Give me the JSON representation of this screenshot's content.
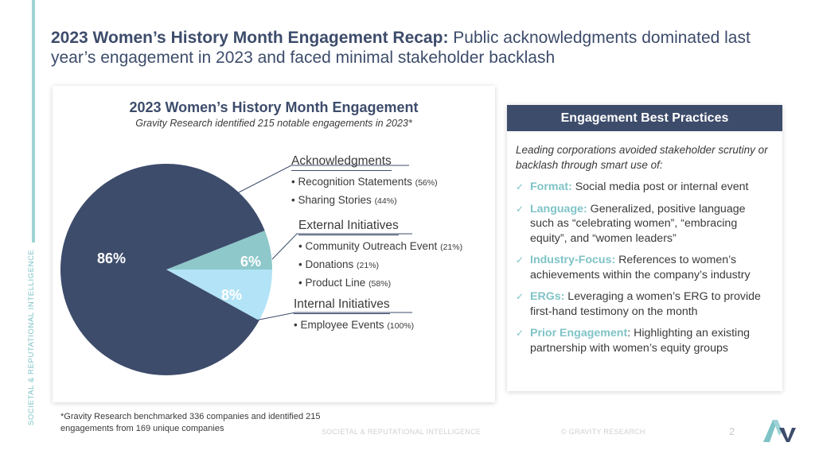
{
  "headline": {
    "bold": "2023 Women’s History Month Engagement Recap:",
    "rest": " Public acknowledgments dominated last year’s engagement in 2023 and faced minimal stakeholder backlash"
  },
  "side_label": "SOCIETAL & REPUTATIONAL INTELLIGENCE",
  "chart_data": {
    "type": "pie",
    "title": "2023 Women’s History Month Engagement",
    "subtitle": "Gravity Research identified 215 notable engagements in 2023*",
    "slices": [
      {
        "name": "Acknowledgments",
        "value": 86,
        "label": "86%",
        "color": "#3d4c6b"
      },
      {
        "name": "External Initiatives",
        "value": 6,
        "label": "6%",
        "color": "#8ec8cb"
      },
      {
        "name": "Internal Initiatives",
        "value": 8,
        "label": "8%",
        "color": "#b3e3f6"
      }
    ],
    "legend": [
      {
        "heading": "Acknowledgments",
        "items": [
          {
            "text": "Recognition Statements",
            "pct": "(56%)"
          },
          {
            "text": "Sharing Stories",
            "pct": "(44%)"
          }
        ]
      },
      {
        "heading": "External Initiatives",
        "items": [
          {
            "text": "Community Outreach Event",
            "pct": "(21%)"
          },
          {
            "text": "Donations",
            "pct": "(21%)"
          },
          {
            "text": "Product Line",
            "pct": "(58%)"
          }
        ]
      },
      {
        "heading": "Internal Initiatives",
        "items": [
          {
            "text": "Employee Events",
            "pct": "(100%)"
          }
        ]
      }
    ]
  },
  "best_practices": {
    "header": "Engagement Best Practices",
    "intro": "Leading corporations avoided stakeholder scrutiny or backlash through smart use of:",
    "check": "✓",
    "items": [
      {
        "key": "Format:",
        "text": " Social media post or internal event"
      },
      {
        "key": "Language:",
        "text": " Generalized, positive language such as “celebrating women”, “embracing equity”, and “women leaders”"
      },
      {
        "key": "Industry-Focus:",
        "text": " References to women’s achievements within the company’s industry"
      },
      {
        "key": "ERGs:",
        "text": " Leveraging a women’s ERG to provide first-hand testimony on the month"
      },
      {
        "key": "Prior Engagement",
        "text": ": Highlighting an existing partnership with women’s equity groups"
      }
    ]
  },
  "footnote": {
    "line1": "*Gravity Research benchmarked 336 companies and identified 215",
    "line2": "engagements from 169 unique companies"
  },
  "footer": {
    "center": "SOCIETAL & REPUTATIONAL INTELLIGENCE",
    "right": "© GRAVITY RESEARCH",
    "page": "2"
  }
}
